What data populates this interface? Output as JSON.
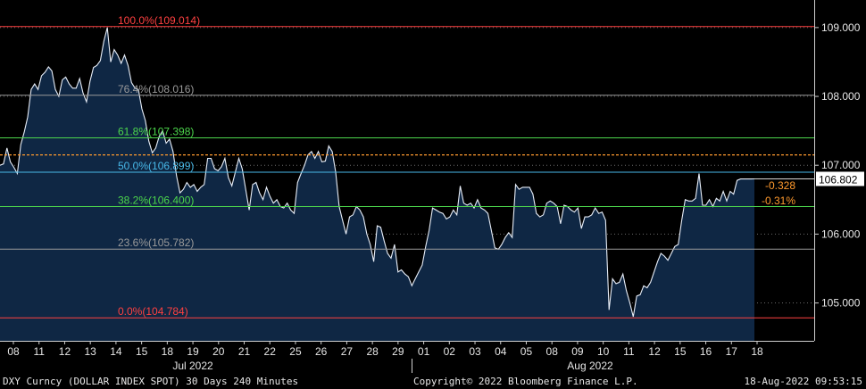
{
  "chart_data": {
    "type": "area",
    "price_axis": {
      "ticks": [
        "109.000",
        "108.000",
        "107.000",
        "106.000",
        "105.000"
      ],
      "ylim": [
        104.45,
        109.4
      ]
    },
    "days": [
      "08",
      "11",
      "12",
      "13",
      "14",
      "15",
      "18",
      "19",
      "20",
      "21",
      "22",
      "25",
      "26",
      "27",
      "28",
      "29",
      "01",
      "02",
      "03",
      "04",
      "05",
      "08",
      "09",
      "10",
      "11",
      "12",
      "15",
      "16",
      "17",
      "18"
    ],
    "months": [
      "Jul 2022",
      "Aug 2022"
    ],
    "fib_levels": [
      {
        "label": "100.0%(109.014)",
        "value": 109.014,
        "color": "#ff4040"
      },
      {
        "label": "76.4%(108.016)",
        "value": 108.016,
        "color": "#9a9a9a"
      },
      {
        "label": "61.8%(107.398)",
        "value": 107.398,
        "color": "#4cd64c"
      },
      {
        "label": "50.0%(106.899)",
        "value": 106.899,
        "color": "#48b8e8"
      },
      {
        "label": "38.2%(106.400)",
        "value": 106.4,
        "color": "#4cd64c"
      },
      {
        "label": "23.6%(105.782)",
        "value": 105.782,
        "color": "#9a9a9a"
      },
      {
        "label": "0.0%(104.784)",
        "value": 104.784,
        "color": "#ff4040"
      }
    ],
    "reference_line": {
      "value": 107.15,
      "color": "#ff9a2e"
    },
    "last_price": "106.802",
    "change": "-0.328",
    "change_pct": "-0.31%",
    "series": [
      {
        "name": "DXY",
        "color": "#e8eef8",
        "fill": "#0f2744",
        "values": [
          107.0,
          107.02,
          107.25,
          107.05,
          106.97,
          106.88,
          107.3,
          107.48,
          107.7,
          108.1,
          108.18,
          108.1,
          108.3,
          108.35,
          108.43,
          108.37,
          108.1,
          108.0,
          108.24,
          108.28,
          108.18,
          108.12,
          108.12,
          108.26,
          108.05,
          107.92,
          108.22,
          108.42,
          108.45,
          108.52,
          108.8,
          109.0,
          108.5,
          108.68,
          108.6,
          108.48,
          108.6,
          108.45,
          108.2,
          108.12,
          108.1,
          107.82,
          107.65,
          107.35,
          107.18,
          107.25,
          107.42,
          107.5,
          107.32,
          107.38,
          107.2,
          106.85,
          106.6,
          106.65,
          106.75,
          106.68,
          106.72,
          106.62,
          106.68,
          106.72,
          107.1,
          107.1,
          106.95,
          106.92,
          106.98,
          107.1,
          106.82,
          106.7,
          106.9,
          107.1,
          106.95,
          106.65,
          106.35,
          106.72,
          106.75,
          106.6,
          106.5,
          106.68,
          106.55,
          106.45,
          106.5,
          106.4,
          106.38,
          106.45,
          106.35,
          106.3,
          106.75,
          106.88,
          107.0,
          107.15,
          107.2,
          107.1,
          107.2,
          107.05,
          107.06,
          107.28,
          107.2,
          106.9,
          106.4,
          106.2,
          106.0,
          106.25,
          106.28,
          106.4,
          106.35,
          106.25,
          106.0,
          105.85,
          105.6,
          106.12,
          106.1,
          105.9,
          105.72,
          105.65,
          105.85,
          105.45,
          105.48,
          105.42,
          105.38,
          105.25,
          105.35,
          105.45,
          105.55,
          105.82,
          106.05,
          106.38,
          106.35,
          106.32,
          106.3,
          106.22,
          106.25,
          106.35,
          106.28,
          106.7,
          106.45,
          106.42,
          106.45,
          106.38,
          106.5,
          106.38,
          106.35,
          106.3,
          106.05,
          105.8,
          105.78,
          105.85,
          105.95,
          106.02,
          105.95,
          106.72,
          106.65,
          106.68,
          106.68,
          106.68,
          106.58,
          106.3,
          106.25,
          106.28,
          106.45,
          106.48,
          106.45,
          106.4,
          106.15,
          106.42,
          106.4,
          106.35,
          106.32,
          106.38,
          106.08,
          106.25,
          106.25,
          106.28,
          106.38,
          106.3,
          106.32,
          106.2,
          104.9,
          105.35,
          105.28,
          105.3,
          105.42,
          105.18,
          105.0,
          104.8,
          105.1,
          105.12,
          105.25,
          105.22,
          105.3,
          105.45,
          105.6,
          105.72,
          105.68,
          105.62,
          105.72,
          105.82,
          105.85,
          106.2,
          106.5,
          106.48,
          106.48,
          106.52,
          106.88,
          106.42,
          106.42,
          106.5,
          106.4,
          106.52,
          106.48,
          106.62,
          106.48,
          106.62,
          106.58,
          106.78,
          106.8,
          106.8,
          106.8,
          106.8,
          106.802
        ]
      }
    ]
  },
  "footer": {
    "left": "DXY Curncy (DOLLAR INDEX SPOT) 30 Days 240 Minutes",
    "center": "Copyright© 2022 Bloomberg Finance L.P.",
    "right": "18-Aug-2022 09:53:15"
  }
}
